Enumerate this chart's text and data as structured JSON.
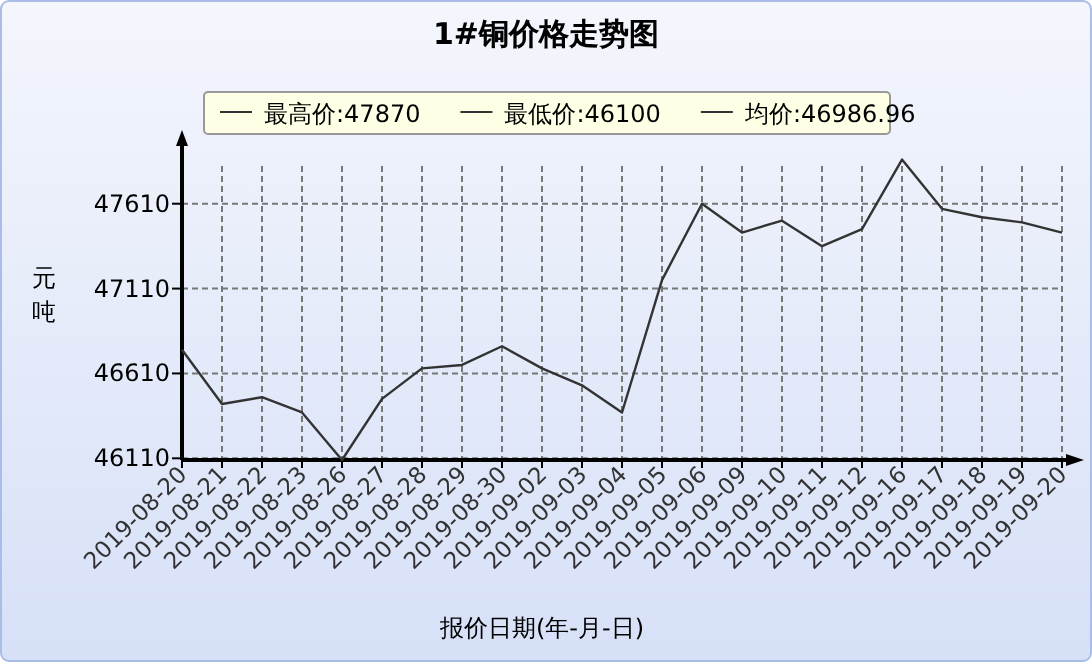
{
  "chart_data": {
    "type": "line",
    "title": "1#铜价格走势图",
    "xlabel": "报价日期(年-月-日)",
    "ylabel": "元吨",
    "annotations": [
      "最高价:47870",
      "最低价:46100",
      "均价:46986.96"
    ],
    "categories": [
      "2019-08-20",
      "2019-08-21",
      "2019-08-22",
      "2019-08-23",
      "2019-08-26",
      "2019-08-27",
      "2019-08-28",
      "2019-08-29",
      "2019-08-30",
      "2019-09-02",
      "2019-09-03",
      "2019-09-04",
      "2019-09-05",
      "2019-09-06",
      "2019-09-09",
      "2019-09-10",
      "2019-09-11",
      "2019-09-12",
      "2019-09-16",
      "2019-09-17",
      "2019-09-18",
      "2019-09-19",
      "2019-09-20"
    ],
    "series": [
      {
        "color": "#333333",
        "values": [
          46750,
          46430,
          46470,
          46380,
          46100,
          46460,
          46640,
          46660,
          46770,
          46640,
          46540,
          46380,
          47160,
          47610,
          47440,
          47510,
          47360,
          47460,
          47870,
          47580,
          47530,
          47500,
          47440
        ]
      }
    ],
    "ylim": [
      46100,
      47950
    ],
    "yticks": [
      46110,
      46610,
      47110,
      47610
    ],
    "grid": true,
    "marker": "none",
    "line_style": "solid"
  }
}
